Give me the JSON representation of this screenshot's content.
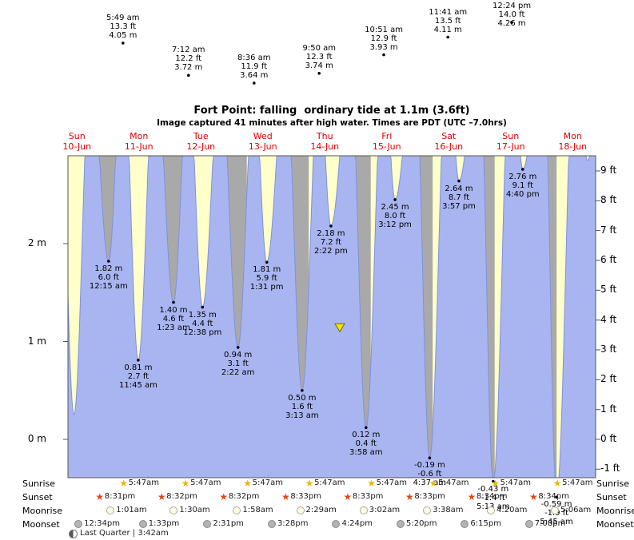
{
  "title": "Fort Point: falling  ordinary tide at 1.1m (3.6ft)",
  "subtitle": "Image captured 41 minutes after high water. Times are PDT (UTC –7.0hrs)",
  "colors": {
    "plot_bg": "#ffffc9",
    "night_band": "#a9a9a9",
    "tide_fill": "#a9b5f0",
    "tide_stroke": "#8091dd",
    "day_label": "#e00000",
    "marker_fill": "#f5e300"
  },
  "chart_data": {
    "type": "area",
    "y_axis": {
      "left_unit": "m",
      "right_unit": "ft"
    },
    "days": [
      {
        "name": "Sun",
        "date": "10-Jun"
      },
      {
        "name": "Mon",
        "date": "11-Jun"
      },
      {
        "name": "Tue",
        "date": "12-Jun"
      },
      {
        "name": "Wed",
        "date": "13-Jun"
      },
      {
        "name": "Thu",
        "date": "14-Jun"
      },
      {
        "name": "Fri",
        "date": "15-Jun"
      },
      {
        "name": "Sat",
        "date": "16-Jun"
      },
      {
        "name": "Sun",
        "date": "17-Jun"
      },
      {
        "name": "Mon",
        "date": "18-Jun"
      }
    ],
    "left_ticks": [
      {
        "label": "2 m",
        "m": 2
      },
      {
        "label": "1 m",
        "m": 1
      },
      {
        "label": "0 m",
        "m": 0
      }
    ],
    "right_ticks": [
      {
        "label": "9 ft",
        "ft": 9
      },
      {
        "label": "8 ft",
        "ft": 8
      },
      {
        "label": "7 ft",
        "ft": 7
      },
      {
        "label": "6 ft",
        "ft": 6
      },
      {
        "label": "5 ft",
        "ft": 5
      },
      {
        "label": "4 ft",
        "ft": 4
      },
      {
        "label": "3 ft",
        "ft": 3
      },
      {
        "label": "2 ft",
        "ft": 2
      },
      {
        "label": "1 ft",
        "ft": 1
      },
      {
        "label": "0 ft",
        "ft": 0
      },
      {
        "label": "-1 ft",
        "ft": -1
      }
    ],
    "night": {
      "sunset_h": 20.517,
      "sunrise_h": 5.783
    },
    "high_tides": [
      {
        "t": 29.82,
        "m": 4.05,
        "lines": [
          "5:49 am",
          "13.3 ft",
          "4.05 m"
        ]
      },
      {
        "t": 55.2,
        "m": 3.72,
        "lines": [
          "7:12 am",
          "12.2 ft",
          "3.72 m"
        ]
      },
      {
        "t": 80.6,
        "m": 3.64,
        "lines": [
          "8:36 am",
          "11.9 ft",
          "3.64 m"
        ]
      },
      {
        "t": 105.83,
        "m": 3.74,
        "lines": [
          "9:50 am",
          "12.3 ft",
          "3.74 m"
        ]
      },
      {
        "t": 130.85,
        "m": 3.93,
        "lines": [
          "10:51 am",
          "12.9 ft",
          "3.93 m"
        ]
      },
      {
        "t": 155.68,
        "m": 4.11,
        "lines": [
          "11:41 am",
          "13.5 ft",
          "4.11 m"
        ]
      },
      {
        "t": 180.4,
        "m": 4.26,
        "lines": [
          "12:24 pm",
          "14.0 ft",
          "4.26 m"
        ]
      }
    ],
    "low_tides": [
      {
        "t": 24.25,
        "m": 1.82,
        "lines": [
          "1.82 m",
          "6.0 ft",
          "12:15 am"
        ]
      },
      {
        "t": 35.75,
        "m": 0.81,
        "lines": [
          "0.81 m",
          "2.7 ft",
          "11:45 am"
        ]
      },
      {
        "t": 49.38,
        "m": 1.4,
        "lines": [
          "1.40 m",
          "4.6 ft",
          "1:23 am"
        ]
      },
      {
        "t": 60.63,
        "m": 1.35,
        "lines": [
          "1.35 m",
          "4.4 ft",
          "12:38 pm"
        ]
      },
      {
        "t": 74.37,
        "m": 0.94,
        "lines": [
          "0.94 m",
          "3.1 ft",
          "2:22 am"
        ]
      },
      {
        "t": 85.52,
        "m": 1.81,
        "lines": [
          "1.81 m",
          "5.9 ft",
          "1:31 pm"
        ]
      },
      {
        "t": 99.22,
        "m": 0.5,
        "lines": [
          "0.50 m",
          "1.6 ft",
          "3:13 am"
        ]
      },
      {
        "t": 110.37,
        "m": 2.18,
        "lines": [
          "2.18 m",
          "7.2 ft",
          "2:22 pm"
        ]
      },
      {
        "t": 123.97,
        "m": 0.12,
        "lines": [
          "0.12 m",
          "0.4 ft",
          "3:58 am"
        ]
      },
      {
        "t": 135.2,
        "m": 2.45,
        "lines": [
          "2.45 m",
          "8.0 ft",
          "3:12 pm"
        ]
      },
      {
        "t": 148.62,
        "m": -0.19,
        "lines": [
          "-0.19 m",
          "-0.6 ft",
          "4:37 am"
        ]
      },
      {
        "t": 159.95,
        "m": 2.64,
        "lines": [
          "2.64 m",
          "8.7 ft",
          "3:57 pm"
        ]
      },
      {
        "t": 173.22,
        "m": -0.43,
        "lines": [
          "-0.43 m",
          "-1.4 ft",
          "5:13 am"
        ]
      },
      {
        "t": 184.67,
        "m": 2.76,
        "lines": [
          "2.76 m",
          "9.1 ft",
          "4:40 pm"
        ]
      },
      {
        "t": 197.75,
        "m": -0.59,
        "lines": [
          "-0.59 m",
          "-1.9 ft",
          "5:45 am"
        ]
      }
    ],
    "curve_extremes": [
      [
        4.92,
        3.95
      ],
      [
        10.83,
        0.25
      ],
      [
        17.33,
        3.9
      ],
      [
        24.25,
        1.82
      ],
      [
        29.82,
        4.05
      ],
      [
        35.75,
        0.81
      ],
      [
        42.3,
        4.0
      ],
      [
        49.38,
        1.4
      ],
      [
        55.2,
        3.72
      ],
      [
        60.63,
        1.35
      ],
      [
        67.6,
        3.8
      ],
      [
        74.37,
        0.94
      ],
      [
        80.6,
        3.64
      ],
      [
        85.52,
        1.81
      ],
      [
        92.8,
        3.8
      ],
      [
        99.22,
        0.5
      ],
      [
        105.83,
        3.74
      ],
      [
        110.37,
        2.18
      ],
      [
        117.9,
        3.85
      ],
      [
        123.97,
        0.12
      ],
      [
        130.85,
        3.93
      ],
      [
        135.2,
        2.45
      ],
      [
        142.9,
        3.95
      ],
      [
        148.62,
        -0.19
      ],
      [
        155.68,
        4.11
      ],
      [
        159.95,
        2.64
      ],
      [
        167.8,
        4.05
      ],
      [
        173.22,
        -0.43
      ],
      [
        180.4,
        4.26
      ],
      [
        184.67,
        2.76
      ],
      [
        192.7,
        4.1
      ],
      [
        197.75,
        -0.59
      ],
      [
        205.1,
        4.3
      ],
      [
        209.7,
        2.85
      ],
      [
        217,
        4.2
      ]
    ],
    "current_marker": {
      "t": 113.8,
      "m": 1.1
    }
  },
  "legend": {
    "left_labels": [
      "Sunrise",
      "Sunset",
      "Moonrise",
      "Moonset"
    ],
    "right_labels": [
      "Sunrise",
      "Sunset",
      "Moonrise",
      "Moonset"
    ],
    "sunrise": [
      {
        "day": 1,
        "time": "5:47am"
      },
      {
        "day": 2,
        "time": "5:47am"
      },
      {
        "day": 3,
        "time": "5:47am"
      },
      {
        "day": 4,
        "time": "5:47am"
      },
      {
        "day": 5,
        "time": "5:47am"
      },
      {
        "day": 6,
        "time": "5:47am"
      },
      {
        "day": 7,
        "time": "5:47am"
      },
      {
        "day": 8,
        "time": "5:47am"
      }
    ],
    "sunset": [
      {
        "day": 0,
        "time": "8:31pm"
      },
      {
        "day": 1,
        "time": "8:32pm"
      },
      {
        "day": 2,
        "time": "8:32pm"
      },
      {
        "day": 3,
        "time": "8:33pm"
      },
      {
        "day": 4,
        "time": "8:33pm"
      },
      {
        "day": 5,
        "time": "8:33pm"
      },
      {
        "day": 6,
        "time": "8:34pm"
      },
      {
        "day": 7,
        "time": "8:34pm"
      }
    ],
    "moonrise": [
      {
        "day": 1,
        "time": "1:01am"
      },
      {
        "day": 2,
        "time": "1:30am"
      },
      {
        "day": 3,
        "time": "1:58am"
      },
      {
        "day": 4,
        "time": "2:29am"
      },
      {
        "day": 5,
        "time": "3:02am"
      },
      {
        "day": 6,
        "time": "3:38am"
      },
      {
        "day": 7,
        "time": "4:20am"
      },
      {
        "day": 8,
        "time": "5:06am"
      }
    ],
    "moonset": [
      {
        "day": 0,
        "time": "12:34pm"
      },
      {
        "day": 1,
        "time": "1:33pm"
      },
      {
        "day": 2,
        "time": "2:31pm"
      },
      {
        "day": 3,
        "time": "3:28pm"
      },
      {
        "day": 4,
        "time": "4:24pm"
      },
      {
        "day": 5,
        "time": "5:20pm"
      },
      {
        "day": 6,
        "time": "6:15pm"
      },
      {
        "day": 7,
        "time": "7:08pm"
      }
    ],
    "moon_phase": "Last Quarter | 3:42am"
  }
}
